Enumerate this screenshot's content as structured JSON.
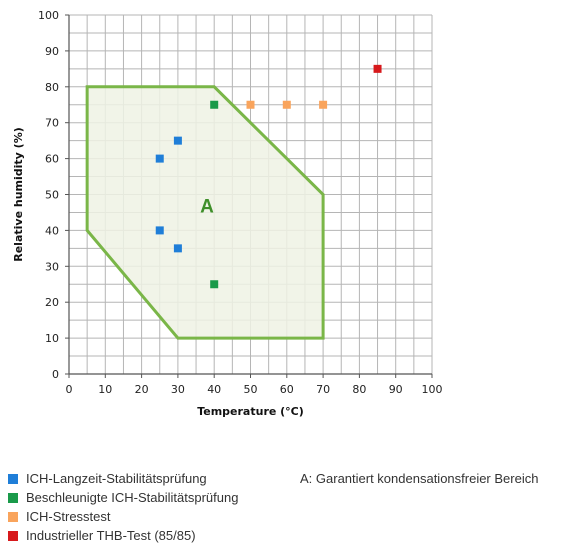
{
  "chart_data": {
    "type": "scatter",
    "xlabel": "Temperature (°C)",
    "ylabel": "Relative humidity (%)",
    "xlim": [
      0,
      100
    ],
    "ylim": [
      0,
      100
    ],
    "x_ticks": [
      "0",
      "10",
      "20",
      "30",
      "40",
      "50",
      "60",
      "70",
      "80",
      "90",
      "100"
    ],
    "y_ticks": [
      "0",
      "10",
      "20",
      "30",
      "40",
      "50",
      "60",
      "70",
      "80",
      "90",
      "100"
    ],
    "grid": true,
    "series": [
      {
        "name": "ICH-Langzeit-Stabilitätsprüfung",
        "color": "#1f7ed8",
        "points": [
          [
            25,
            60
          ],
          [
            30,
            65
          ],
          [
            25,
            40
          ],
          [
            30,
            35
          ]
        ]
      },
      {
        "name": "Beschleunigte ICH-Stabilitätsprüfung",
        "color": "#1a9a4a",
        "points": [
          [
            40,
            75
          ],
          [
            40,
            25
          ]
        ]
      },
      {
        "name": "ICH-Stresstest",
        "color": "#f9a45c",
        "points": [
          [
            50,
            75
          ],
          [
            60,
            75
          ],
          [
            70,
            75
          ]
        ]
      },
      {
        "name": "Industrieller THB-Test (85/85)",
        "color": "#d7191c",
        "points": [
          [
            85,
            85
          ]
        ]
      }
    ],
    "region": {
      "label": "A",
      "description": "A: Garantiert kondensationsfreier Bereich",
      "color": "#7ab648",
      "fill": "#eef2e4",
      "polygon": [
        [
          5,
          80
        ],
        [
          40,
          80
        ],
        [
          60,
          60
        ],
        [
          70,
          50
        ],
        [
          70,
          10
        ],
        [
          30,
          10
        ],
        [
          5,
          40
        ]
      ],
      "label_position": [
        38,
        45
      ]
    },
    "legend_placement": "bottom-left"
  }
}
